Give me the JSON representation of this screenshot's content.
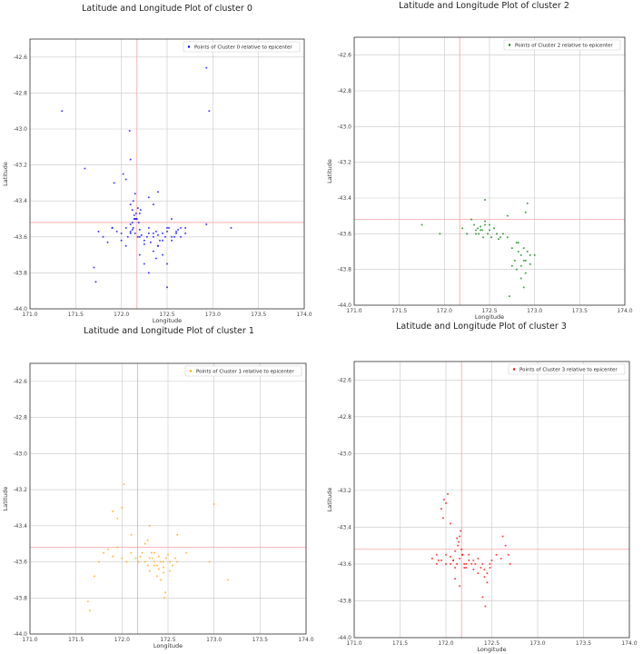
{
  "chart_data": [
    {
      "type": "scatter",
      "title": "Latitude and Longitude Plot of cluster 0",
      "xlabel": "Longitude",
      "ylabel": "Latitude",
      "xlim": [
        171.0,
        174.0
      ],
      "ylim": [
        -44.0,
        -42.5
      ],
      "xticks": [
        "171.0",
        "171.5",
        "172.0",
        "172.5",
        "173.0",
        "173.5",
        "174.0"
      ],
      "yticks": [
        "-42.6",
        "-42.8",
        "-43.0",
        "-43.2",
        "-43.4",
        "-43.6",
        "-43.8",
        "-44.0"
      ],
      "grid": true,
      "legend_position": "top-right",
      "epicenter": {
        "lon": 172.17,
        "lat": -43.52
      },
      "series": [
        {
          "name": "Points of Cluster 0 relative to epicenter",
          "color": "#0000ff",
          "x": [
            171.35,
            172.09,
            172.1,
            172.93,
            172.96,
            171.6,
            171.75,
            171.9,
            172.0,
            172.05,
            172.07,
            172.1,
            172.12,
            172.13,
            172.15,
            172.18,
            172.2,
            172.22,
            172.25,
            172.28,
            172.3,
            172.32,
            172.35,
            172.38,
            172.4,
            172.42,
            172.45,
            172.48,
            172.5,
            172.52,
            172.55,
            172.58,
            172.6,
            172.62,
            172.65,
            172.7,
            171.8,
            171.85,
            171.9,
            171.95,
            172.0,
            172.05,
            172.1,
            172.15,
            172.2,
            172.25,
            172.3,
            172.35,
            172.4,
            172.45,
            172.5,
            172.55,
            172.6,
            172.65,
            172.7,
            172.1,
            172.12,
            172.14,
            172.16,
            172.18,
            172.2,
            172.13,
            172.15,
            172.17,
            172.19,
            172.21,
            172.1,
            172.12,
            172.14,
            172.16,
            172.35,
            172.38,
            172.4,
            172.45,
            172.5,
            171.7,
            171.72,
            172.2,
            172.25,
            172.3,
            172.5,
            172.55,
            173.2,
            172.93,
            171.92,
            172.02,
            172.05,
            172.3,
            172.35,
            172.4
          ],
          "y": [
            -42.9,
            -43.01,
            -43.17,
            -42.66,
            -42.9,
            -43.22,
            -43.57,
            -43.55,
            -43.58,
            -43.55,
            -43.6,
            -43.57,
            -43.52,
            -43.55,
            -43.58,
            -43.6,
            -43.56,
            -43.59,
            -43.62,
            -43.6,
            -43.58,
            -43.63,
            -43.6,
            -43.57,
            -43.59,
            -43.62,
            -43.58,
            -43.6,
            -43.57,
            -43.55,
            -43.62,
            -43.6,
            -43.58,
            -43.56,
            -43.55,
            -43.58,
            -43.6,
            -43.63,
            -43.55,
            -43.57,
            -43.62,
            -43.65,
            -43.58,
            -43.5,
            -43.6,
            -43.64,
            -43.55,
            -43.58,
            -43.65,
            -43.62,
            -43.55,
            -43.6,
            -43.57,
            -43.6,
            -43.55,
            -43.42,
            -43.45,
            -43.48,
            -43.5,
            -43.44,
            -43.47,
            -43.4,
            -43.36,
            -43.5,
            -43.52,
            -43.45,
            -43.53,
            -43.56,
            -43.5,
            -43.47,
            -43.68,
            -43.72,
            -43.65,
            -43.7,
            -43.75,
            -43.77,
            -43.85,
            -43.7,
            -43.75,
            -43.8,
            -43.88,
            -43.5,
            -43.55,
            -43.53,
            -43.3,
            -43.25,
            -43.28,
            -43.38,
            -43.42,
            -43.35
          ]
        }
      ]
    },
    {
      "type": "scatter",
      "title": "Latitude and Longitude Plot of cluster 2",
      "xlabel": "Longitude",
      "ylabel": "Latitude",
      "xlim": [
        171.0,
        174.0
      ],
      "ylim": [
        -44.0,
        -42.5
      ],
      "xticks": [
        "171.0",
        "171.5",
        "172.0",
        "172.5",
        "173.0",
        "173.5",
        "174.0"
      ],
      "yticks": [
        "-42.6",
        "-42.8",
        "-43.0",
        "-43.2",
        "-43.4",
        "-43.6",
        "-43.8",
        "-44.0"
      ],
      "grid": true,
      "legend_position": "top-right",
      "epicenter": {
        "lon": 172.17,
        "lat": -43.52
      },
      "series": [
        {
          "name": "Points of Cluster 2 relative to epicenter",
          "color": "#008000",
          "x": [
            171.75,
            171.95,
            172.2,
            172.25,
            172.3,
            172.33,
            172.35,
            172.38,
            172.4,
            172.42,
            172.43,
            172.45,
            172.48,
            172.5,
            172.52,
            172.55,
            172.58,
            172.6,
            172.62,
            172.35,
            172.37,
            172.4,
            172.45,
            172.5,
            172.65,
            172.7,
            172.75,
            172.8,
            172.82,
            172.85,
            172.88,
            172.9,
            172.92,
            172.95,
            172.75,
            172.78,
            172.8,
            172.85,
            172.88,
            172.9,
            172.95,
            173.0,
            172.9,
            172.92,
            172.85,
            172.7,
            172.72,
            172.88,
            172.82,
            172.45
          ],
          "y": [
            -43.55,
            -43.6,
            -43.57,
            -43.6,
            -43.52,
            -43.55,
            -43.58,
            -43.6,
            -43.56,
            -43.58,
            -43.62,
            -43.55,
            -43.6,
            -43.58,
            -43.62,
            -43.57,
            -43.6,
            -43.63,
            -43.62,
            -43.6,
            -43.57,
            -43.58,
            -43.53,
            -43.55,
            -43.6,
            -43.62,
            -43.68,
            -43.65,
            -43.7,
            -43.72,
            -43.68,
            -43.75,
            -43.7,
            -43.72,
            -43.78,
            -43.75,
            -43.8,
            -43.78,
            -43.75,
            -43.82,
            -43.77,
            -43.72,
            -43.48,
            -43.43,
            -43.85,
            -43.5,
            -43.95,
            -43.9,
            -43.65,
            -43.41
          ]
        }
      ]
    },
    {
      "type": "scatter",
      "title": "Latitude and Longitude Plot of cluster 1",
      "xlabel": "Longitude",
      "ylabel": "Latitude",
      "xlim": [
        171.0,
        174.0
      ],
      "ylim": [
        -44.0,
        -42.5
      ],
      "xticks": [
        "171.0",
        "171.5",
        "172.0",
        "172.5",
        "173.0",
        "173.5",
        "174.0"
      ],
      "yticks": [
        "-42.6",
        "-42.8",
        "-43.0",
        "-43.2",
        "-43.4",
        "-43.6",
        "-43.8",
        "-44.0"
      ],
      "grid": true,
      "legend_position": "top-right",
      "epicenter": {
        "lon": 172.17,
        "lat": -43.52
      },
      "series": [
        {
          "name": "Points of Cluster 1 relative to epicenter",
          "color": "#ffa500",
          "x": [
            171.63,
            171.65,
            171.7,
            171.75,
            171.8,
            171.85,
            171.9,
            171.95,
            172.0,
            172.05,
            172.1,
            172.15,
            172.18,
            172.2,
            172.22,
            172.25,
            172.28,
            172.3,
            172.32,
            172.35,
            172.38,
            172.4,
            172.42,
            172.45,
            172.48,
            172.5,
            172.52,
            172.55,
            172.58,
            172.6,
            172.3,
            172.35,
            172.4,
            172.45,
            172.25,
            172.28,
            172.42,
            172.47,
            171.9,
            171.95,
            172.0,
            172.02,
            172.3,
            172.6,
            172.7,
            173.0,
            172.95,
            173.15,
            172.1,
            172.38,
            172.46,
            172.52,
            172.35,
            172.33,
            172.45
          ],
          "y": [
            -43.82,
            -43.87,
            -43.68,
            -43.6,
            -43.55,
            -43.53,
            -43.57,
            -43.52,
            -43.58,
            -43.6,
            -43.55,
            -43.58,
            -43.6,
            -43.57,
            -43.55,
            -43.6,
            -43.62,
            -43.58,
            -43.55,
            -43.6,
            -43.62,
            -43.57,
            -43.6,
            -43.63,
            -43.58,
            -43.56,
            -43.6,
            -43.62,
            -43.58,
            -43.6,
            -43.65,
            -43.62,
            -43.64,
            -43.66,
            -43.5,
            -43.48,
            -43.7,
            -43.77,
            -43.32,
            -43.36,
            -43.3,
            -43.17,
            -43.4,
            -43.45,
            -43.55,
            -43.28,
            -43.6,
            -43.7,
            -43.45,
            -43.68,
            -43.8,
            -43.65,
            -43.55,
            -43.58,
            -43.6
          ]
        }
      ]
    },
    {
      "type": "scatter",
      "title": "Latitude and Longitude Plot of cluster 3",
      "xlabel": "Longitude",
      "ylabel": "Latitude",
      "xlim": [
        171.0,
        174.0
      ],
      "ylim": [
        -44.0,
        -42.5
      ],
      "xticks": [
        "171.0",
        "171.5",
        "172.0",
        "172.5",
        "173.0",
        "173.5",
        "174.0"
      ],
      "yticks": [
        "-42.6",
        "-42.8",
        "-43.0",
        "-43.2",
        "-43.4",
        "-43.6",
        "-43.8",
        "-44.0"
      ],
      "grid": true,
      "legend_position": "top-right",
      "epicenter": {
        "lon": 172.17,
        "lat": -43.52
      },
      "series": [
        {
          "name": "Points of Cluster 3 relative to epicenter",
          "color": "#ff0000",
          "x": [
            171.85,
            171.9,
            171.95,
            172.0,
            172.05,
            172.08,
            172.1,
            172.12,
            172.15,
            172.18,
            172.2,
            172.22,
            172.25,
            172.28,
            172.3,
            172.32,
            172.35,
            172.38,
            172.4,
            172.42,
            172.45,
            172.48,
            172.5,
            172.13,
            172.15,
            172.17,
            172.14,
            172.16,
            172.18,
            172.12,
            172.1,
            171.95,
            171.98,
            172.0,
            172.02,
            171.97,
            172.05,
            172.55,
            172.6,
            172.62,
            172.65,
            172.68,
            172.1,
            172.15,
            172.22,
            172.35,
            172.42,
            172.48,
            172.45,
            172.4,
            172.05,
            172.0,
            171.9,
            171.92,
            172.25,
            172.3,
            172.7,
            172.43,
            172.2,
            172.08
          ],
          "y": [
            -43.57,
            -43.55,
            -43.58,
            -43.6,
            -43.56,
            -43.58,
            -43.62,
            -43.6,
            -43.57,
            -43.55,
            -43.6,
            -43.62,
            -43.58,
            -43.6,
            -43.63,
            -43.6,
            -43.57,
            -43.62,
            -43.6,
            -43.63,
            -43.65,
            -43.6,
            -43.58,
            -43.5,
            -43.45,
            -43.52,
            -43.48,
            -43.42,
            -43.55,
            -43.46,
            -43.53,
            -43.3,
            -43.25,
            -43.27,
            -43.22,
            -43.35,
            -43.38,
            -43.55,
            -43.57,
            -43.45,
            -43.5,
            -43.55,
            -43.68,
            -43.72,
            -43.6,
            -43.65,
            -43.67,
            -43.62,
            -43.7,
            -43.78,
            -43.6,
            -43.55,
            -43.6,
            -43.58,
            -43.55,
            -43.58,
            -43.6,
            -43.83,
            -43.62,
            -43.58
          ]
        }
      ]
    }
  ]
}
